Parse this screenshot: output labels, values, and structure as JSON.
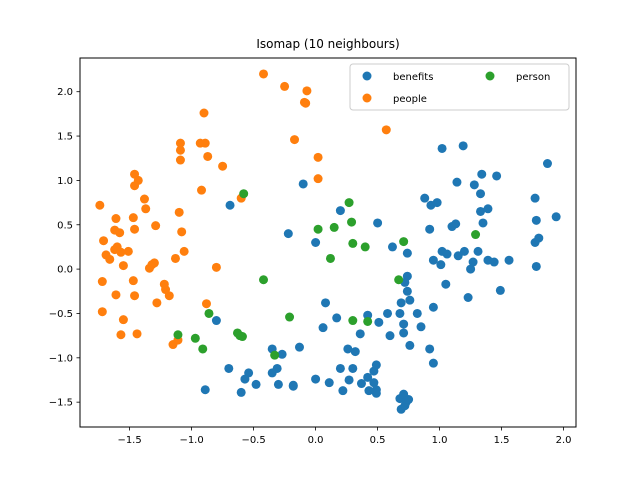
{
  "chart_data": {
    "type": "scatter",
    "title": "Isomap (10 neighbours)",
    "xlabel": "",
    "ylabel": "",
    "xlim": [
      -1.9,
      2.1
    ],
    "ylim": [
      -1.78,
      2.38
    ],
    "xticks": [
      -1.5,
      -1.0,
      -0.5,
      0.0,
      0.5,
      1.0,
      1.5,
      2.0
    ],
    "xtick_labels": [
      "−1.5",
      "−1.0",
      "−0.5",
      "0.0",
      "0.5",
      "1.0",
      "1.5",
      "2.0"
    ],
    "yticks": [
      -1.5,
      -1.0,
      -0.5,
      0.0,
      0.5,
      1.0,
      1.5,
      2.0
    ],
    "ytick_labels": [
      "−1.5",
      "−1.0",
      "−0.5",
      "0.0",
      "0.5",
      "1.0",
      "1.5",
      "2.0"
    ],
    "grid": false,
    "legend_position": "top-right",
    "series": [
      {
        "name": "benefits",
        "color": "#1f77b4",
        "points": [
          [
            -0.1,
            0.96
          ],
          [
            -0.69,
            0.72
          ],
          [
            -0.22,
            0.4
          ],
          [
            0.0,
            0.3
          ],
          [
            0.2,
            0.66
          ],
          [
            0.5,
            0.52
          ],
          [
            0.62,
            0.25
          ],
          [
            0.74,
            0.18
          ],
          [
            0.88,
            0.8
          ],
          [
            0.93,
            0.72
          ],
          [
            0.98,
            0.75
          ],
          [
            0.92,
            0.45
          ],
          [
            1.02,
            1.36
          ],
          [
            1.19,
            1.39
          ],
          [
            1.14,
            0.98
          ],
          [
            1.28,
            0.95
          ],
          [
            1.34,
            1.07
          ],
          [
            1.46,
            1.05
          ],
          [
            1.33,
            0.85
          ],
          [
            1.33,
            0.65
          ],
          [
            1.39,
            0.68
          ],
          [
            1.35,
            0.52
          ],
          [
            1.1,
            0.48
          ],
          [
            1.13,
            0.51
          ],
          [
            1.02,
            0.2
          ],
          [
            1.15,
            0.15
          ],
          [
            1.2,
            0.2
          ],
          [
            0.95,
            0.1
          ],
          [
            1.06,
            0.17
          ],
          [
            1.01,
            0.05
          ],
          [
            1.31,
            0.2
          ],
          [
            1.39,
            0.1
          ],
          [
            1.44,
            0.08
          ],
          [
            1.56,
            0.1
          ],
          [
            1.25,
            0.0
          ],
          [
            1.27,
            0.08
          ],
          [
            1.77,
            0.8
          ],
          [
            1.78,
            0.55
          ],
          [
            1.77,
            0.3
          ],
          [
            1.8,
            0.35
          ],
          [
            1.87,
            1.19
          ],
          [
            1.94,
            0.59
          ],
          [
            1.78,
            0.03
          ],
          [
            1.49,
            -0.24
          ],
          [
            1.23,
            -0.32
          ],
          [
            1.05,
            -0.17
          ],
          [
            0.95,
            -0.43
          ],
          [
            0.74,
            -0.08
          ],
          [
            0.72,
            -0.15
          ],
          [
            0.74,
            -0.25
          ],
          [
            0.69,
            -0.38
          ],
          [
            0.76,
            -0.35
          ],
          [
            0.58,
            -0.5
          ],
          [
            0.68,
            -0.5
          ],
          [
            0.82,
            -0.5
          ],
          [
            0.85,
            -0.65
          ],
          [
            0.92,
            -0.9
          ],
          [
            0.95,
            -1.06
          ],
          [
            0.76,
            -0.86
          ],
          [
            0.71,
            -0.72
          ],
          [
            0.6,
            -0.75
          ],
          [
            0.71,
            -0.62
          ],
          [
            0.51,
            -0.6
          ],
          [
            0.42,
            -0.52
          ],
          [
            0.36,
            -0.73
          ],
          [
            0.32,
            -0.93
          ],
          [
            0.26,
            -0.9
          ],
          [
            0.08,
            -0.38
          ],
          [
            0.17,
            -0.55
          ],
          [
            0.06,
            -0.66
          ],
          [
            -0.13,
            -0.88
          ],
          [
            -0.35,
            -0.9
          ],
          [
            -0.27,
            -0.96
          ],
          [
            -0.31,
            -1.12
          ],
          [
            -0.35,
            -1.17
          ],
          [
            -0.3,
            -1.3
          ],
          [
            -0.18,
            -1.31
          ],
          [
            -0.18,
            -1.32
          ],
          [
            0.0,
            -1.24
          ],
          [
            0.11,
            -1.28
          ],
          [
            0.2,
            -1.12
          ],
          [
            0.22,
            -1.37
          ],
          [
            0.27,
            -1.25
          ],
          [
            0.3,
            -1.12
          ],
          [
            0.37,
            -1.29
          ],
          [
            0.42,
            -1.22
          ],
          [
            0.47,
            -1.15
          ],
          [
            0.49,
            -1.08
          ],
          [
            0.47,
            -1.28
          ],
          [
            0.49,
            -1.36
          ],
          [
            0.49,
            -1.4
          ],
          [
            0.43,
            -1.37
          ],
          [
            0.68,
            -1.46
          ],
          [
            0.69,
            -1.58
          ],
          [
            0.72,
            -1.54
          ],
          [
            0.71,
            -1.41
          ],
          [
            0.73,
            -1.5
          ],
          [
            0.75,
            -1.47
          ],
          [
            -0.48,
            -1.3
          ],
          [
            -0.54,
            -1.17
          ],
          [
            -0.57,
            -1.24
          ],
          [
            -0.7,
            -1.12
          ],
          [
            -0.6,
            -1.39
          ],
          [
            -0.89,
            -1.36
          ],
          [
            -0.8,
            -0.58
          ]
        ]
      },
      {
        "name": "people",
        "color": "#ff7f0e",
        "points": [
          [
            -0.42,
            2.2
          ],
          [
            -0.25,
            2.06
          ],
          [
            -0.07,
            2.01
          ],
          [
            -0.09,
            1.88
          ],
          [
            -0.08,
            1.87
          ],
          [
            0.57,
            1.57
          ],
          [
            -0.17,
            1.46
          ],
          [
            0.02,
            1.26
          ],
          [
            0.02,
            1.02
          ],
          [
            -0.6,
            0.8
          ],
          [
            -0.75,
            1.16
          ],
          [
            -0.87,
            1.27
          ],
          [
            -0.93,
            1.42
          ],
          [
            -0.89,
            1.42
          ],
          [
            -0.9,
            1.76
          ],
          [
            -1.09,
            1.42
          ],
          [
            -1.09,
            1.34
          ],
          [
            -1.09,
            1.23
          ],
          [
            -0.92,
            0.89
          ],
          [
            -1.1,
            0.64
          ],
          [
            -1.08,
            0.42
          ],
          [
            -1.06,
            0.2
          ],
          [
            -1.13,
            0.12
          ],
          [
            -0.8,
            0.02
          ],
          [
            -1.18,
            -0.3
          ],
          [
            -1.22,
            -0.17
          ],
          [
            -1.21,
            -0.23
          ],
          [
            -1.28,
            -0.38
          ],
          [
            -1.15,
            -0.85
          ],
          [
            -1.11,
            -0.8
          ],
          [
            -0.88,
            -0.39
          ],
          [
            -1.46,
            1.07
          ],
          [
            -1.43,
            1.0
          ],
          [
            -1.38,
            0.79
          ],
          [
            -1.46,
            0.94
          ],
          [
            -1.37,
            0.68
          ],
          [
            -1.29,
            0.49
          ],
          [
            -1.47,
            0.58
          ],
          [
            -1.46,
            0.45
          ],
          [
            -1.61,
            0.57
          ],
          [
            -1.58,
            0.41
          ],
          [
            -1.62,
            0.44
          ],
          [
            -1.74,
            0.72
          ],
          [
            -1.6,
            0.25
          ],
          [
            -1.62,
            0.22
          ],
          [
            -1.66,
            0.11
          ],
          [
            -1.69,
            0.16
          ],
          [
            -1.71,
            0.32
          ],
          [
            -1.57,
            0.19
          ],
          [
            -1.51,
            0.2
          ],
          [
            -1.55,
            0.04
          ],
          [
            -1.47,
            -0.13
          ],
          [
            -1.46,
            -0.3
          ],
          [
            -1.61,
            -0.29
          ],
          [
            -1.72,
            -0.14
          ],
          [
            -1.72,
            -0.48
          ],
          [
            -1.55,
            -0.57
          ],
          [
            -1.57,
            -0.74
          ],
          [
            -1.44,
            -0.73
          ],
          [
            -1.32,
            0.05
          ],
          [
            -1.3,
            0.07
          ],
          [
            -1.34,
            0.01
          ]
        ]
      },
      {
        "name": "person",
        "color": "#2ca02c",
        "points": [
          [
            -0.58,
            0.85
          ],
          [
            0.27,
            0.75
          ],
          [
            0.29,
            0.53
          ],
          [
            0.15,
            0.47
          ],
          [
            0.02,
            0.45
          ],
          [
            0.3,
            0.29
          ],
          [
            0.4,
            0.25
          ],
          [
            0.71,
            0.31
          ],
          [
            1.29,
            0.39
          ],
          [
            0.12,
            0.12
          ],
          [
            -0.42,
            -0.12
          ],
          [
            0.67,
            -0.12
          ],
          [
            -0.21,
            -0.54
          ],
          [
            0.3,
            -0.58
          ],
          [
            0.42,
            -0.59
          ],
          [
            -0.86,
            -0.5
          ],
          [
            -0.63,
            -0.72
          ],
          [
            -0.61,
            -0.75
          ],
          [
            -0.59,
            -0.76
          ],
          [
            -1.11,
            -0.74
          ],
          [
            -0.97,
            -0.78
          ],
          [
            -0.91,
            -0.9
          ],
          [
            -0.33,
            -0.97
          ]
        ]
      }
    ]
  }
}
